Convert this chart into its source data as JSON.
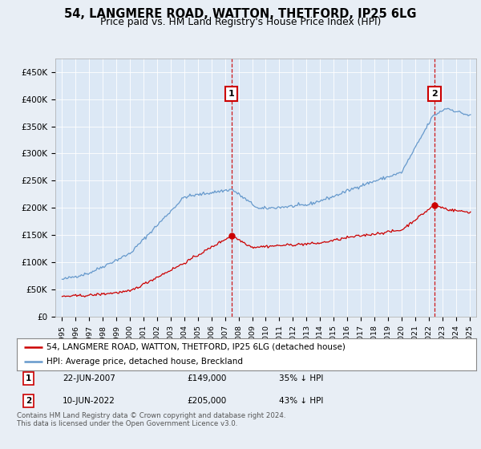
{
  "title": "54, LANGMERE ROAD, WATTON, THETFORD, IP25 6LG",
  "subtitle": "Price paid vs. HM Land Registry's House Price Index (HPI)",
  "legend_line1": "54, LANGMERE ROAD, WATTON, THETFORD, IP25 6LG (detached house)",
  "legend_line2": "HPI: Average price, detached house, Breckland",
  "annotation1_label": "1",
  "annotation1_date": "22-JUN-2007",
  "annotation1_price": "£149,000",
  "annotation1_hpi": "35% ↓ HPI",
  "annotation2_label": "2",
  "annotation2_date": "10-JUN-2022",
  "annotation2_price": "£205,000",
  "annotation2_hpi": "43% ↓ HPI",
  "footer": "Contains HM Land Registry data © Crown copyright and database right 2024.\nThis data is licensed under the Open Government Licence v3.0.",
  "hpi_color": "#6699cc",
  "property_color": "#cc0000",
  "background_color": "#e8eef5",
  "plot_bg_color": "#dce8f5",
  "marker1_x": 2007.47,
  "marker2_x": 2022.44,
  "marker1_y": 149000,
  "marker2_y": 205000,
  "ylim": [
    0,
    475000
  ],
  "xlim_start": 1994.5,
  "xlim_end": 2025.5,
  "yticks": [
    0,
    50000,
    100000,
    150000,
    200000,
    250000,
    300000,
    350000,
    400000,
    450000
  ],
  "ytick_labels": [
    "£0",
    "£50K",
    "£100K",
    "£150K",
    "£200K",
    "£250K",
    "£300K",
    "£350K",
    "£400K",
    "£450K"
  ],
  "xticks": [
    1995,
    1996,
    1997,
    1998,
    1999,
    2000,
    2001,
    2002,
    2003,
    2004,
    2005,
    2006,
    2007,
    2008,
    2009,
    2010,
    2011,
    2012,
    2013,
    2014,
    2015,
    2016,
    2017,
    2018,
    2019,
    2020,
    2021,
    2022,
    2023,
    2024,
    2025
  ]
}
